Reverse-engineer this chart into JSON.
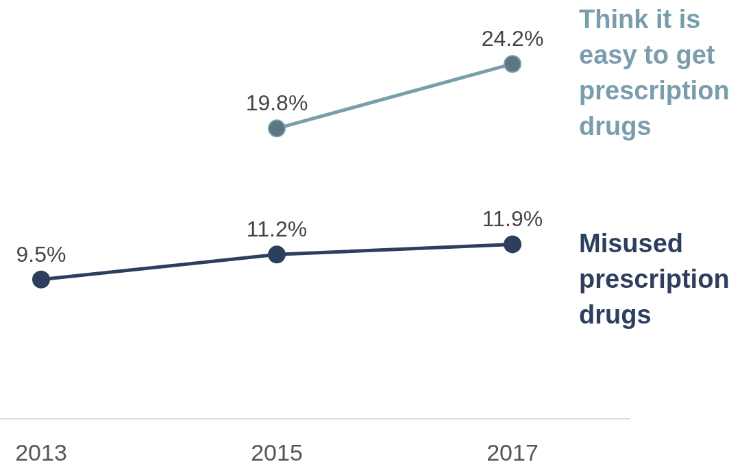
{
  "chart_data": {
    "type": "line",
    "categories": [
      "2013",
      "2015",
      "2017"
    ],
    "series": [
      {
        "name": "Think it is easy to get prescription drugs",
        "color": "#7a9dad",
        "values": [
          null,
          19.8,
          24.2
        ],
        "value_labels": [
          null,
          "19.8%",
          "24.2%"
        ]
      },
      {
        "name": "Misused prescription drugs",
        "color": "#2e3f5e",
        "values": [
          9.5,
          11.2,
          11.9
        ],
        "value_labels": [
          "9.5%",
          "11.2%",
          "11.9%"
        ]
      }
    ],
    "marker": "circle",
    "line_style": "solid"
  }
}
